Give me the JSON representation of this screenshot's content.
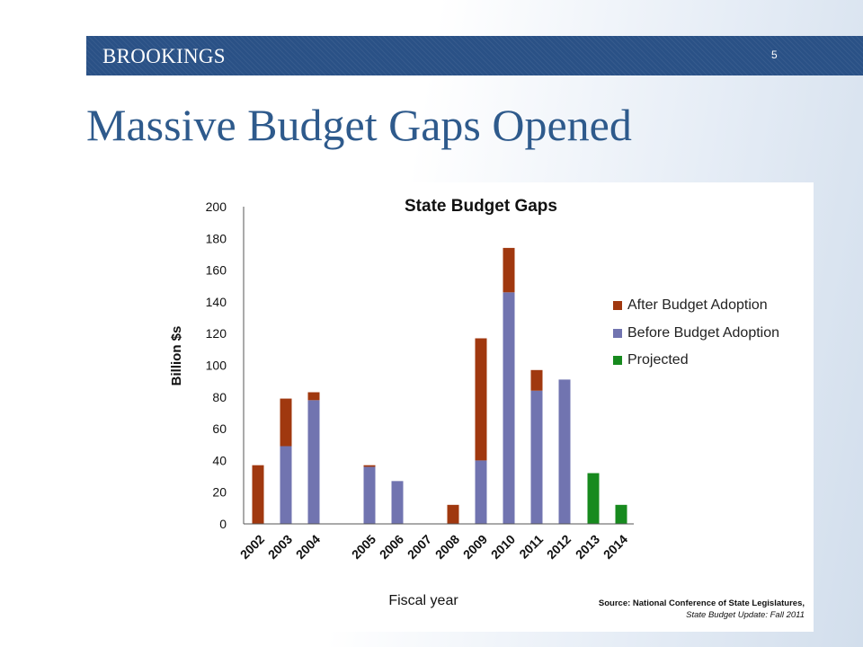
{
  "header": {
    "brand": "BROOKINGS",
    "page_number": "5"
  },
  "slide_title": "Massive Budget Gaps Opened",
  "source": {
    "label_text": "Source: National Conference of State Legislatures,",
    "publication": "State Budget Update: Fall 2011"
  },
  "colors": {
    "banner": "#2a5186",
    "title": "#2e5a8c",
    "after": "#a0380f",
    "before": "#7174b0",
    "projected": "#178a1e"
  },
  "chart_data": {
    "type": "bar",
    "stacked": true,
    "title": "State Budget Gaps",
    "xlabel": "Fiscal year",
    "ylabel": "Billion $s",
    "ylim": [
      0,
      200
    ],
    "yticks": [
      0,
      20,
      40,
      60,
      80,
      100,
      120,
      140,
      160,
      180,
      200
    ],
    "grid": false,
    "legend_position": "right",
    "categories": [
      "2002",
      "2003",
      "2004",
      "2005",
      "2006",
      "2007",
      "2008",
      "2009",
      "2010",
      "2011",
      "2012",
      "2013",
      "2014"
    ],
    "series": [
      {
        "name": "After Budget Adoption",
        "color": "#a0380f",
        "values": [
          37,
          30,
          5,
          1,
          0,
          0,
          12,
          77,
          28,
          13,
          0,
          0,
          0
        ]
      },
      {
        "name": "Before Budget Adoption",
        "color": "#7174b0",
        "values": [
          0,
          49,
          78,
          36,
          27,
          0,
          0,
          40,
          146,
          84,
          91,
          0,
          0
        ]
      },
      {
        "name": "Projected",
        "color": "#178a1e",
        "values": [
          0,
          0,
          0,
          0,
          0,
          0,
          0,
          0,
          0,
          0,
          0,
          32,
          12
        ]
      }
    ],
    "stack_order": [
      "Before Budget Adoption",
      "After Budget Adoption",
      "Projected"
    ]
  }
}
